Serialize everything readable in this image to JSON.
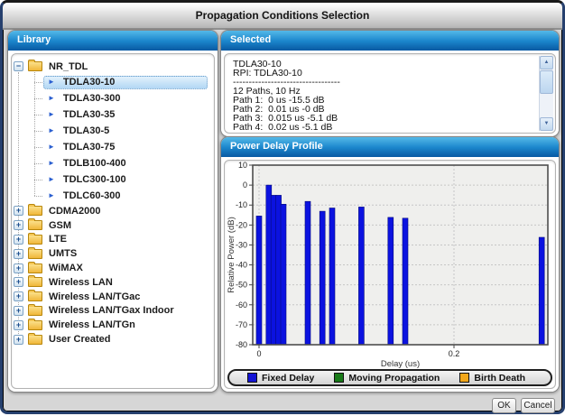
{
  "window": {
    "title": "Propagation Conditions Selection"
  },
  "buttons": {
    "ok": "OK",
    "cancel": "Cancel"
  },
  "icons": {
    "collapse": "−",
    "expand": "+",
    "leaf_arrow": "►",
    "scroll_up": "▲",
    "scroll_down": "▼"
  },
  "library": {
    "header": "Library",
    "root": {
      "label": "NR_TDL",
      "expanded": true,
      "children": [
        "TDLA30-10",
        "TDLA30-300",
        "TDLA30-35",
        "TDLA30-5",
        "TDLA30-75",
        "TDLB100-400",
        "TDLC300-100",
        "TDLC60-300"
      ]
    },
    "selected_item": "TDLA30-10",
    "categories": [
      "CDMA2000",
      "GSM",
      "LTE",
      "UMTS",
      "WiMAX",
      "Wireless LAN",
      "Wireless LAN/TGac",
      "Wireless LAN/TGax Indoor",
      "Wireless LAN/TGn",
      "User Created"
    ]
  },
  "selected_panel": {
    "header": "Selected",
    "lines": [
      "TDLA30-10",
      "RPI: TDLA30-10",
      "----------------------------------",
      "12 Paths, 10 Hz",
      "Path 1:  0 us -15.5 dB",
      "Path 2:  0.01 us -0 dB",
      "Path 3:  0.015 us -5.1 dB",
      "Path 4:  0.02 us -5.1 dB"
    ]
  },
  "chart_panel": {
    "header": "Power Delay Profile"
  },
  "chart_data": {
    "type": "bar",
    "title": "Power Delay Profile",
    "xlabel": "Delay (us)",
    "ylabel": "Relative Power (dB)",
    "x": [
      0,
      0.01,
      0.015,
      0.02,
      0.025,
      0.05,
      0.065,
      0.075,
      0.105,
      0.135,
      0.15,
      0.29
    ],
    "values": [
      -15.5,
      0,
      -5.1,
      -5.1,
      -9.6,
      -8.2,
      -13.1,
      -11.5,
      -11.0,
      -16.2,
      -16.6,
      -26.2
    ],
    "ylim": [
      -80,
      10
    ],
    "ytick_step": 10,
    "xticks": [
      0,
      0.2
    ],
    "xlim": [
      -0.007,
      0.296
    ],
    "grid": true,
    "bar_color": "#0b12e0",
    "legend_position": "bottom",
    "legend": [
      {
        "label": "Fixed Delay",
        "color": "#1414d6"
      },
      {
        "label": "Moving Propagation",
        "color": "#187a18"
      },
      {
        "label": "Birth Death",
        "color": "#f2a71b"
      }
    ]
  },
  "colors": {
    "panel_header_top": "#55b9e8",
    "panel_header_bottom": "#0a5da6",
    "selection_bg": "#b2d7f4",
    "bar": "#0b12e0"
  }
}
